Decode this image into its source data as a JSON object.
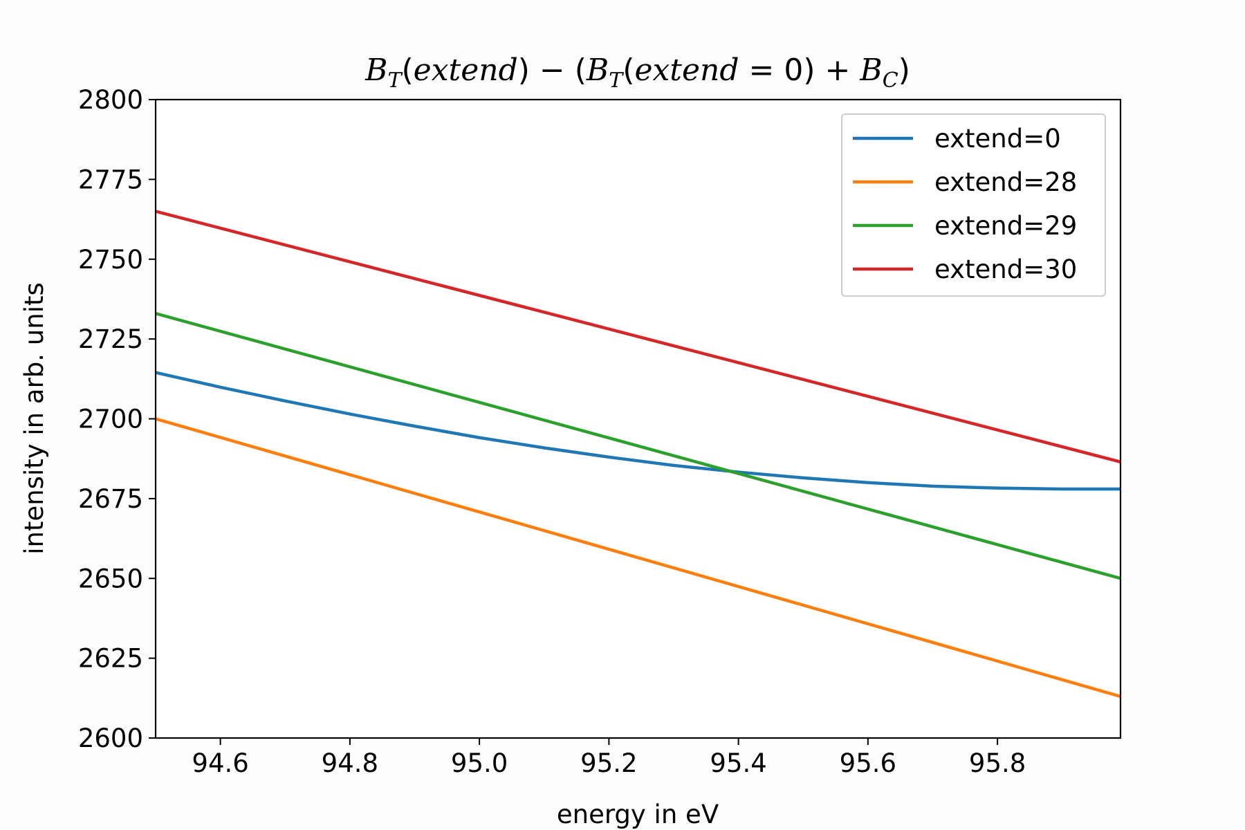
{
  "chart_data": {
    "type": "line",
    "title": {
      "B_T": "B",
      "sub_T": "T",
      "open_paren": "(",
      "extend": "extend",
      "close_paren": ")",
      "minus": " − (",
      "eq_zero": " = 0",
      "plus": " + ",
      "B_C": "B",
      "sub_C": "C",
      "final_paren": ")"
    },
    "xlabel": "energy in eV",
    "ylabel": "intensity in arb. units",
    "xlim": [
      94.5,
      95.99
    ],
    "ylim": [
      2600,
      2800
    ],
    "xticks": [
      94.6,
      94.8,
      95.0,
      95.2,
      95.4,
      95.6,
      95.8
    ],
    "xtick_labels": [
      "94.6",
      "94.8",
      "95.0",
      "95.2",
      "95.4",
      "95.6",
      "95.8"
    ],
    "yticks": [
      2600,
      2625,
      2650,
      2675,
      2700,
      2725,
      2750,
      2775,
      2800
    ],
    "ytick_labels": [
      "2600",
      "2625",
      "2650",
      "2675",
      "2700",
      "2725",
      "2750",
      "2775",
      "2800"
    ],
    "grid": false,
    "legend_position": "top-right",
    "series": [
      {
        "name": "extend=0",
        "color": "#1f77b4",
        "x": [
          94.5,
          94.6,
          94.7,
          94.8,
          94.9,
          95.0,
          95.1,
          95.2,
          95.3,
          95.4,
          95.5,
          95.6,
          95.7,
          95.8,
          95.9,
          95.99
        ],
        "y": [
          2714.5,
          2709.9,
          2705.6,
          2701.5,
          2697.7,
          2694.1,
          2690.9,
          2688.0,
          2685.4,
          2683.3,
          2681.5,
          2680.0,
          2678.9,
          2678.3,
          2678.0,
          2678.0
        ]
      },
      {
        "name": "extend=28",
        "color": "#ff7f0e",
        "x": [
          94.5,
          95.99
        ],
        "y": [
          2700.0,
          2613.0
        ]
      },
      {
        "name": "extend=29",
        "color": "#2ca02c",
        "x": [
          94.5,
          95.99
        ],
        "y": [
          2733.0,
          2650.0
        ]
      },
      {
        "name": "extend=30",
        "color": "#d62728",
        "x": [
          94.5,
          95.99
        ],
        "y": [
          2765.0,
          2686.5
        ]
      }
    ]
  }
}
